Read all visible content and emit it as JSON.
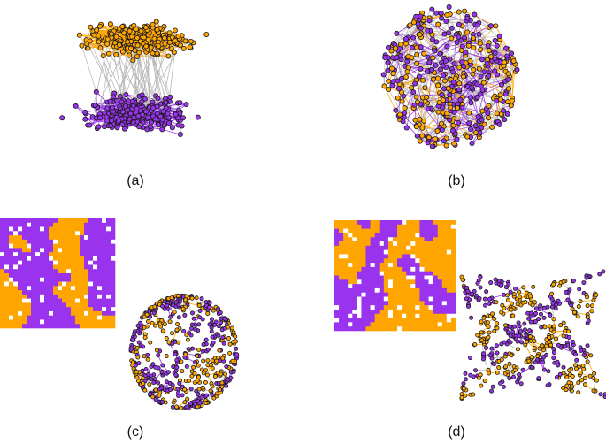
{
  "colors": {
    "group_a": "#ffa500",
    "group_b": "#9933ee",
    "cross_edge": "#b9b9b9",
    "node_outline": "#1a1a1a",
    "grid_empty": "#ffffff"
  },
  "panels": [
    {
      "id": "a",
      "caption": "(a)",
      "kind": "two-cluster network"
    },
    {
      "id": "b",
      "caption": "(b)",
      "kind": "mixed network"
    },
    {
      "id": "c",
      "caption": "(c)",
      "kind": "lattice grid with sphere-like embedding"
    },
    {
      "id": "d",
      "caption": "(d)",
      "kind": "lattice grid with folded-sheet embedding"
    }
  ]
}
